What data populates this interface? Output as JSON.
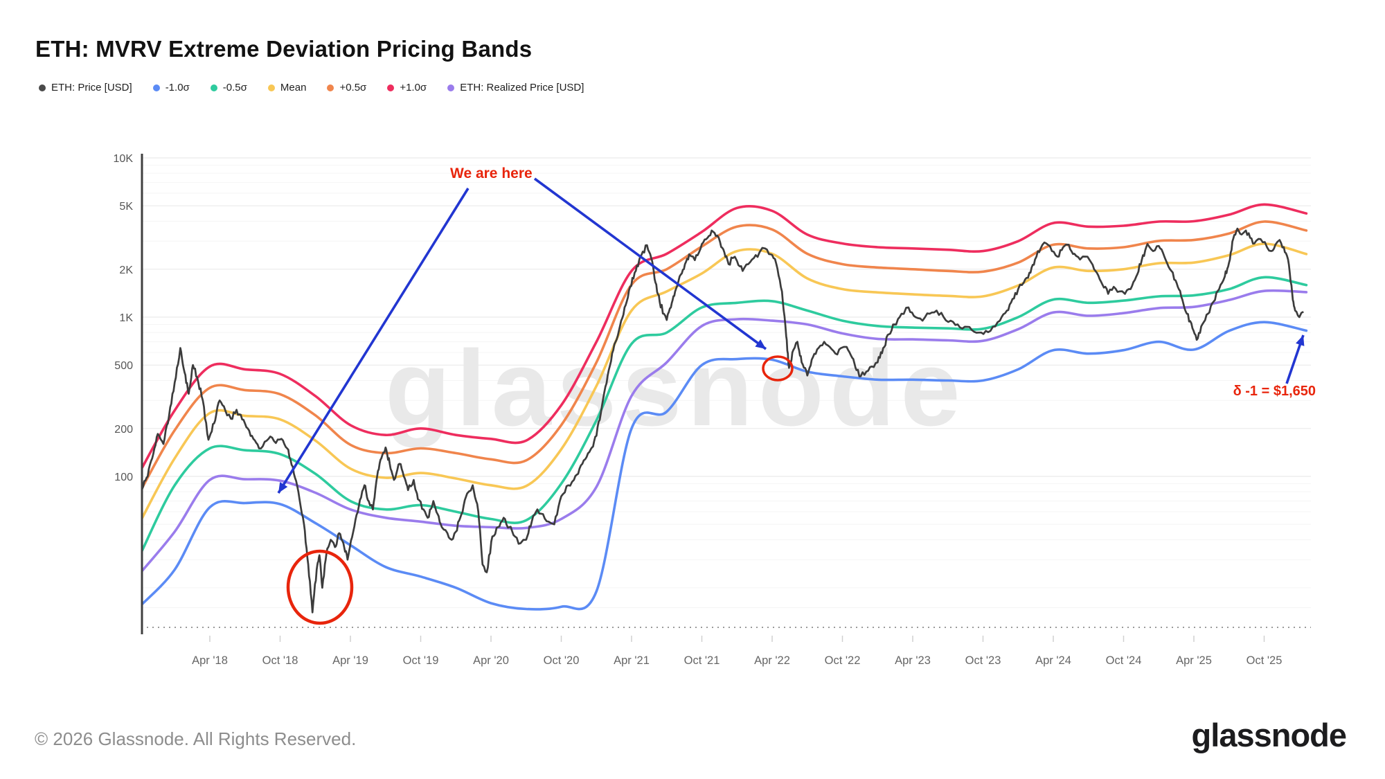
{
  "title": "ETH: MVRV Extreme Deviation Pricing Bands",
  "watermark": "glassnode",
  "legend": [
    {
      "label": "ETH: Price [USD]",
      "color": "#4a4a4a"
    },
    {
      "label": "-1.0σ",
      "color": "#5b8bf5"
    },
    {
      "label": "-0.5σ",
      "color": "#2ecb9e"
    },
    {
      "label": "Mean",
      "color": "#f8c755"
    },
    {
      "label": "+0.5σ",
      "color": "#f0854c"
    },
    {
      "label": "+1.0σ",
      "color": "#ee2d5e"
    },
    {
      "label": "ETH: Realized Price [USD]",
      "color": "#9a7cec"
    }
  ],
  "annotations": {
    "we_are_here": {
      "text": "We are here",
      "color": "#e8250c"
    },
    "delta": {
      "text": "δ -1 = $1,650",
      "color": "#e8250c"
    },
    "arrow_color": "#2236d1",
    "circle_color": "#e8250c"
  },
  "footer": {
    "copyright": "© 2026 Glassnode. All Rights Reserved.",
    "logo": "glassnode"
  },
  "chart_data": {
    "type": "line",
    "yscale": "log",
    "title": "ETH: MVRV Extreme Deviation Pricing Bands",
    "xlim": [
      "Oct 2017",
      "Jan 2026"
    ],
    "ylim": [
      11,
      10000
    ],
    "grid": true,
    "yticks": [
      {
        "value": 10000,
        "label": "10K"
      },
      {
        "value": 5000,
        "label": "5K"
      },
      {
        "value": 2000,
        "label": "2K"
      },
      {
        "value": 1000,
        "label": "1K"
      },
      {
        "value": 500,
        "label": "500"
      },
      {
        "value": 200,
        "label": "200"
      },
      {
        "value": 100,
        "label": "100"
      }
    ],
    "minor_gridlines": [
      9000,
      8000,
      7000,
      6000,
      4000,
      3000,
      900,
      800,
      700,
      600,
      400,
      300,
      90,
      80,
      70,
      60,
      50,
      40,
      30,
      20,
      15
    ],
    "xticks": [
      {
        "year": 2018.25,
        "label": "Apr '18"
      },
      {
        "year": 2018.75,
        "label": "Oct '18"
      },
      {
        "year": 2019.25,
        "label": "Apr '19"
      },
      {
        "year": 2019.75,
        "label": "Oct '19"
      },
      {
        "year": 2020.25,
        "label": "Apr '20"
      },
      {
        "year": 2020.75,
        "label": "Oct '20"
      },
      {
        "year": 2021.25,
        "label": "Apr '21"
      },
      {
        "year": 2021.75,
        "label": "Oct '21"
      },
      {
        "year": 2022.25,
        "label": "Apr '22"
      },
      {
        "year": 2022.75,
        "label": "Oct '22"
      },
      {
        "year": 2023.25,
        "label": "Apr '23"
      },
      {
        "year": 2023.75,
        "label": "Oct '23"
      },
      {
        "year": 2024.25,
        "label": "Apr '24"
      },
      {
        "year": 2024.75,
        "label": "Oct '24"
      },
      {
        "year": 2025.25,
        "label": "Apr '25"
      },
      {
        "year": 2025.75,
        "label": "Oct '25"
      }
    ],
    "band_years": [
      2017.76,
      2018.0,
      2018.25,
      2018.5,
      2018.75,
      2019.0,
      2019.25,
      2019.5,
      2019.75,
      2020.0,
      2020.25,
      2020.5,
      2020.75,
      2021.0,
      2021.25,
      2021.5,
      2021.75,
      2022.0,
      2022.25,
      2022.5,
      2022.75,
      2023.0,
      2023.25,
      2023.5,
      2023.75,
      2024.0,
      2024.25,
      2024.5,
      2024.75,
      2025.0,
      2025.25,
      2025.5,
      2025.75,
      2026.05
    ],
    "bands": [
      {
        "name": "+1.0σ",
        "color": "#ee2d5e",
        "values": [
          110,
          260,
          490,
          470,
          440,
          320,
          210,
          182,
          200,
          182,
          172,
          168,
          280,
          700,
          1950,
          2500,
          3430,
          4850,
          4650,
          3300,
          2900,
          2750,
          2700,
          2650,
          2600,
          3000,
          3900,
          3700,
          3750,
          3980,
          4000,
          4400,
          5100,
          4480
        ]
      },
      {
        "name": "+0.5σ",
        "color": "#f0854c",
        "values": [
          82,
          195,
          360,
          348,
          328,
          242,
          158,
          140,
          150,
          140,
          128,
          126,
          210,
          520,
          1600,
          2000,
          2780,
          3700,
          3550,
          2500,
          2150,
          2050,
          2000,
          1950,
          1930,
          2200,
          2850,
          2700,
          2750,
          3010,
          3050,
          3350,
          3980,
          3500
        ]
      },
      {
        "name": "Mean",
        "color": "#f8c755",
        "values": [
          53,
          130,
          250,
          240,
          228,
          168,
          112,
          98,
          105,
          97,
          88,
          87,
          148,
          370,
          1100,
          1450,
          1880,
          2600,
          2500,
          1750,
          1500,
          1430,
          1390,
          1360,
          1350,
          1580,
          2050,
          1950,
          2000,
          2180,
          2200,
          2450,
          2890,
          2490
        ]
      },
      {
        "name": "-0.5σ",
        "color": "#2ecb9e",
        "values": [
          33,
          88,
          150,
          146,
          138,
          104,
          70,
          62,
          66,
          60,
          54,
          53,
          90,
          225,
          680,
          800,
          1150,
          1230,
          1260,
          1100,
          950,
          880,
          860,
          850,
          845,
          1000,
          1290,
          1230,
          1270,
          1350,
          1370,
          1500,
          1780,
          1590
        ]
      },
      {
        "name": "ETH: Realized Price [USD]",
        "color": "#9a7cec",
        "values": [
          25,
          45,
          95,
          96,
          94,
          79,
          62,
          55,
          52,
          49,
          48,
          47.5,
          54,
          86,
          320,
          520,
          880,
          970,
          950,
          900,
          790,
          730,
          725,
          715,
          710,
          840,
          1070,
          1020,
          1060,
          1140,
          1160,
          1280,
          1460,
          1435
        ]
      },
      {
        "name": "-1.0σ",
        "color": "#5b8bf5",
        "values": [
          15.5,
          26,
          64,
          68,
          67,
          51,
          37,
          27,
          23.5,
          20,
          16,
          14.7,
          15.2,
          19,
          200,
          255,
          500,
          545,
          540,
          455,
          425,
          405,
          405,
          400,
          400,
          470,
          620,
          590,
          620,
          700,
          625,
          820,
          930,
          823
        ]
      }
    ],
    "price": {
      "name": "ETH: Price [USD]",
      "color": "#3c3c3c",
      "points": [
        [
          2017.76,
          80
        ],
        [
          2017.8,
          98
        ],
        [
          2017.84,
          130
        ],
        [
          2017.88,
          185
        ],
        [
          2017.92,
          160
        ],
        [
          2017.96,
          240
        ],
        [
          2018.0,
          390
        ],
        [
          2018.04,
          640
        ],
        [
          2018.07,
          450
        ],
        [
          2018.1,
          330
        ],
        [
          2018.13,
          500
        ],
        [
          2018.16,
          420
        ],
        [
          2018.2,
          300
        ],
        [
          2018.24,
          170
        ],
        [
          2018.28,
          215
        ],
        [
          2018.32,
          300
        ],
        [
          2018.36,
          260
        ],
        [
          2018.4,
          230
        ],
        [
          2018.44,
          262
        ],
        [
          2018.48,
          228
        ],
        [
          2018.52,
          200
        ],
        [
          2018.56,
          172
        ],
        [
          2018.6,
          150
        ],
        [
          2018.64,
          165
        ],
        [
          2018.68,
          178
        ],
        [
          2018.72,
          162
        ],
        [
          2018.76,
          172
        ],
        [
          2018.8,
          150
        ],
        [
          2018.84,
          115
        ],
        [
          2018.88,
          80
        ],
        [
          2018.92,
          50
        ],
        [
          2018.95,
          28
        ],
        [
          2018.98,
          14
        ],
        [
          2019.01,
          26
        ],
        [
          2019.03,
          32
        ],
        [
          2019.05,
          20
        ],
        [
          2019.08,
          33
        ],
        [
          2019.11,
          40
        ],
        [
          2019.14,
          36
        ],
        [
          2019.17,
          44
        ],
        [
          2019.2,
          38
        ],
        [
          2019.23,
          30
        ],
        [
          2019.27,
          45
        ],
        [
          2019.31,
          65
        ],
        [
          2019.35,
          88
        ],
        [
          2019.38,
          70
        ],
        [
          2019.41,
          62
        ],
        [
          2019.44,
          100
        ],
        [
          2019.47,
          130
        ],
        [
          2019.5,
          152
        ],
        [
          2019.53,
          120
        ],
        [
          2019.56,
          95
        ],
        [
          2019.6,
          120
        ],
        [
          2019.63,
          100
        ],
        [
          2019.66,
          82
        ],
        [
          2019.7,
          95
        ],
        [
          2019.73,
          72
        ],
        [
          2019.77,
          62
        ],
        [
          2019.8,
          55
        ],
        [
          2019.84,
          70
        ],
        [
          2019.87,
          58
        ],
        [
          2019.9,
          48
        ],
        [
          2019.94,
          44
        ],
        [
          2019.97,
          40
        ],
        [
          2020.0,
          45
        ],
        [
          2020.04,
          58
        ],
        [
          2020.08,
          78
        ],
        [
          2020.12,
          88
        ],
        [
          2020.16,
          60
        ],
        [
          2020.19,
          28
        ],
        [
          2020.22,
          25
        ],
        [
          2020.26,
          42
        ],
        [
          2020.3,
          48
        ],
        [
          2020.34,
          55
        ],
        [
          2020.38,
          48
        ],
        [
          2020.42,
          42
        ],
        [
          2020.46,
          38
        ],
        [
          2020.5,
          40
        ],
        [
          2020.54,
          52
        ],
        [
          2020.58,
          62
        ],
        [
          2020.62,
          58
        ],
        [
          2020.66,
          52
        ],
        [
          2020.7,
          50
        ],
        [
          2020.75,
          75
        ],
        [
          2020.8,
          88
        ],
        [
          2020.84,
          95
        ],
        [
          2020.88,
          112
        ],
        [
          2020.92,
          128
        ],
        [
          2020.96,
          148
        ],
        [
          2021.0,
          180
        ],
        [
          2021.04,
          280
        ],
        [
          2021.08,
          430
        ],
        [
          2021.12,
          620
        ],
        [
          2021.16,
          820
        ],
        [
          2021.2,
          1150
        ],
        [
          2021.24,
          1550
        ],
        [
          2021.28,
          1950
        ],
        [
          2021.32,
          2450
        ],
        [
          2021.36,
          2830
        ],
        [
          2021.39,
          2350
        ],
        [
          2021.42,
          1650
        ],
        [
          2021.45,
          1250
        ],
        [
          2021.48,
          1050
        ],
        [
          2021.5,
          960
        ],
        [
          2021.53,
          1150
        ],
        [
          2021.56,
          1450
        ],
        [
          2021.6,
          1850
        ],
        [
          2021.63,
          2150
        ],
        [
          2021.66,
          2480
        ],
        [
          2021.7,
          2280
        ],
        [
          2021.74,
          2680
        ],
        [
          2021.78,
          3080
        ],
        [
          2021.82,
          3500
        ],
        [
          2021.85,
          3230
        ],
        [
          2021.88,
          2950
        ],
        [
          2021.91,
          2550
        ],
        [
          2021.94,
          2150
        ],
        [
          2021.97,
          2350
        ],
        [
          2022.0,
          2250
        ],
        [
          2022.04,
          1950
        ],
        [
          2022.08,
          2150
        ],
        [
          2022.12,
          2350
        ],
        [
          2022.16,
          2550
        ],
        [
          2022.2,
          2700
        ],
        [
          2022.24,
          2480
        ],
        [
          2022.28,
          2150
        ],
        [
          2022.32,
          1450
        ],
        [
          2022.35,
          760
        ],
        [
          2022.37,
          480
        ],
        [
          2022.4,
          620
        ],
        [
          2022.43,
          700
        ],
        [
          2022.46,
          520
        ],
        [
          2022.5,
          430
        ],
        [
          2022.54,
          560
        ],
        [
          2022.58,
          640
        ],
        [
          2022.62,
          700
        ],
        [
          2022.66,
          650
        ],
        [
          2022.7,
          590
        ],
        [
          2022.74,
          640
        ],
        [
          2022.78,
          650
        ],
        [
          2022.82,
          555
        ],
        [
          2022.85,
          465
        ],
        [
          2022.88,
          425
        ],
        [
          2022.92,
          455
        ],
        [
          2022.96,
          490
        ],
        [
          2023.0,
          520
        ],
        [
          2023.04,
          640
        ],
        [
          2023.08,
          780
        ],
        [
          2023.12,
          900
        ],
        [
          2023.17,
          1050
        ],
        [
          2023.22,
          1150
        ],
        [
          2023.27,
          1000
        ],
        [
          2023.32,
          950
        ],
        [
          2023.37,
          1050
        ],
        [
          2023.42,
          1100
        ],
        [
          2023.47,
          1000
        ],
        [
          2023.52,
          950
        ],
        [
          2023.57,
          900
        ],
        [
          2023.62,
          870
        ],
        [
          2023.67,
          830
        ],
        [
          2023.72,
          800
        ],
        [
          2023.77,
          820
        ],
        [
          2023.82,
          870
        ],
        [
          2023.87,
          950
        ],
        [
          2023.92,
          1100
        ],
        [
          2023.96,
          1300
        ],
        [
          2024.0,
          1500
        ],
        [
          2024.04,
          1650
        ],
        [
          2024.08,
          1900
        ],
        [
          2024.12,
          2300
        ],
        [
          2024.16,
          2700
        ],
        [
          2024.2,
          2900
        ],
        [
          2024.24,
          2600
        ],
        [
          2024.28,
          2400
        ],
        [
          2024.32,
          2750
        ],
        [
          2024.36,
          2850
        ],
        [
          2024.4,
          2500
        ],
        [
          2024.44,
          2300
        ],
        [
          2024.48,
          2400
        ],
        [
          2024.52,
          2200
        ],
        [
          2024.56,
          1900
        ],
        [
          2024.6,
          1600
        ],
        [
          2024.64,
          1400
        ],
        [
          2024.68,
          1550
        ],
        [
          2024.72,
          1450
        ],
        [
          2024.76,
          1400
        ],
        [
          2024.8,
          1500
        ],
        [
          2024.84,
          1800
        ],
        [
          2024.88,
          2300
        ],
        [
          2024.92,
          2880
        ],
        [
          2024.96,
          2600
        ],
        [
          2025.0,
          2800
        ],
        [
          2025.04,
          2400
        ],
        [
          2025.08,
          2000
        ],
        [
          2025.12,
          1700
        ],
        [
          2025.16,
          1350
        ],
        [
          2025.2,
          1050
        ],
        [
          2025.24,
          850
        ],
        [
          2025.27,
          720
        ],
        [
          2025.31,
          900
        ],
        [
          2025.35,
          1050
        ],
        [
          2025.39,
          1250
        ],
        [
          2025.43,
          1500
        ],
        [
          2025.47,
          1800
        ],
        [
          2025.5,
          2200
        ],
        [
          2025.53,
          3100
        ],
        [
          2025.56,
          3600
        ],
        [
          2025.59,
          3300
        ],
        [
          2025.62,
          3500
        ],
        [
          2025.65,
          3150
        ],
        [
          2025.68,
          2900
        ],
        [
          2025.71,
          3100
        ],
        [
          2025.74,
          2950
        ],
        [
          2025.77,
          2750
        ],
        [
          2025.8,
          2600
        ],
        [
          2025.83,
          2850
        ],
        [
          2025.86,
          3050
        ],
        [
          2025.89,
          2750
        ],
        [
          2025.92,
          2300
        ],
        [
          2025.95,
          1400
        ],
        [
          2025.97,
          1100
        ],
        [
          2026.0,
          1000
        ],
        [
          2026.03,
          1080
        ]
      ]
    }
  }
}
